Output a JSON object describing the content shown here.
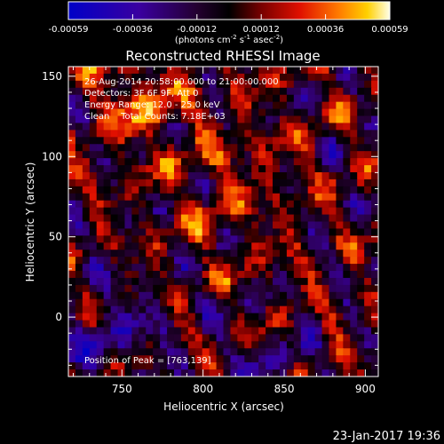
{
  "chart_data": {
    "type": "heatmap",
    "title": "Reconstructed RHESSI Image",
    "xlabel": "Heliocentric X (arcsec)",
    "ylabel": "Heliocentric Y (arcsec)",
    "xlim": [
      717,
      908
    ],
    "ylim": [
      -37,
      156
    ],
    "xticks": [
      750,
      800,
      850,
      900
    ],
    "yticks": [
      0,
      50,
      100,
      150
    ],
    "colorbar": {
      "ticks": [
        "-0.00059",
        "-0.00036",
        "-0.00012",
        "0.00012",
        "0.00036",
        "0.00059"
      ],
      "range": [
        -0.00059,
        0.00059
      ],
      "unit_prefix": "(photons cm",
      "unit_exp1": "-2",
      "unit_mid1": " s",
      "unit_exp2": "-1",
      "unit_mid2": " asec",
      "unit_exp3": "-2",
      "unit_end": ")"
    },
    "annotations": [
      "26-Aug-2014 20:58:00.000 to 21:00:00.000",
      "Detectors: 3F 6F 9F, Att 0",
      "Energy Range: 12.0 - 25.0 keV",
      "Clean    Total Counts: 7.18E+03"
    ],
    "peak_label": "Position of Peak = [763,139]",
    "grid": false
  },
  "footer": {
    "timestamp": "23-Jan-2017 19:36"
  }
}
